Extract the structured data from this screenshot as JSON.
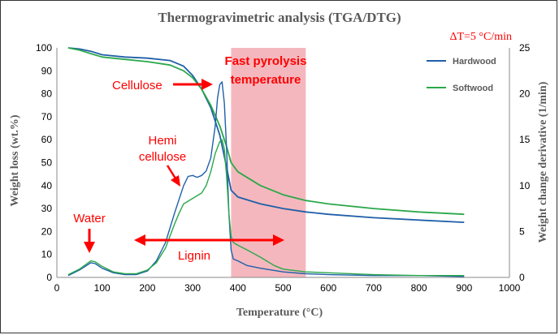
{
  "chart_data": {
    "type": "line",
    "title": "Thermogravimetric analysis (TGA/DTG)",
    "heating_rate": "ΔT=5 °C/min",
    "xlabel": "Temperature (°C)",
    "ylabel_left": "Weight loss (wt.%)",
    "ylabel_right": "Weight change derivative (1/min)",
    "xlim": [
      0,
      1000
    ],
    "ylim_left": [
      0,
      100
    ],
    "ylim_right": [
      0,
      25
    ],
    "x_ticks": [
      "0",
      "100",
      "200",
      "300",
      "400",
      "500",
      "600",
      "700",
      "800",
      "900",
      "1000"
    ],
    "y_left_ticks": [
      "0",
      "10",
      "20",
      "30",
      "40",
      "50",
      "60",
      "70",
      "80",
      "90",
      "100"
    ],
    "y_right_ticks": [
      "0",
      "5",
      "10",
      "15",
      "20",
      "25"
    ],
    "highlight_region": {
      "label_line1": "Fast pyrolysis",
      "label_line2": "temperature",
      "x_start": 385,
      "x_end": 550,
      "color": "#f4b7be"
    },
    "series": [
      {
        "name": "Hardwood",
        "kind": "TGA",
        "axis": "left",
        "color": "#1f5fa8",
        "x": [
          25,
          50,
          75,
          100,
          150,
          200,
          250,
          280,
          300,
          320,
          340,
          360,
          375,
          385,
          400,
          450,
          500,
          550,
          600,
          700,
          800,
          900
        ],
        "y": [
          100,
          99.5,
          98.5,
          97,
          96,
          95.5,
          94.5,
          92,
          88,
          82,
          74,
          62,
          48,
          38,
          35,
          32,
          30,
          28.5,
          27.5,
          26,
          25,
          24
        ]
      },
      {
        "name": "Softwood",
        "kind": "TGA",
        "axis": "left",
        "color": "#2aa84a",
        "x": [
          25,
          50,
          75,
          100,
          150,
          200,
          250,
          280,
          300,
          320,
          340,
          360,
          375,
          385,
          400,
          450,
          500,
          550,
          600,
          700,
          800,
          900
        ],
        "y": [
          100,
          99,
          97.5,
          96,
          95,
          94,
          92.5,
          90,
          87,
          82,
          75,
          66,
          57,
          50,
          46,
          40,
          36,
          33.5,
          32,
          30,
          28.5,
          27.5
        ]
      },
      {
        "name": "Hardwood",
        "kind": "DTG",
        "axis": "right",
        "color": "#1f5fa8",
        "x": [
          25,
          50,
          75,
          85,
          100,
          125,
          150,
          175,
          200,
          220,
          240,
          260,
          280,
          290,
          300,
          310,
          320,
          330,
          340,
          350,
          355,
          360,
          365,
          370,
          375,
          380,
          385,
          390,
          400,
          420,
          450,
          500,
          550,
          600,
          700,
          800,
          900
        ],
        "y": [
          0.2,
          0.8,
          1.6,
          1.5,
          1.0,
          0.5,
          0.3,
          0.3,
          0.7,
          1.8,
          3.8,
          7.0,
          10.0,
          11.0,
          11.1,
          10.9,
          11.1,
          11.6,
          13.0,
          16.5,
          19.5,
          21.0,
          21.3,
          19.0,
          14.0,
          7.0,
          3.0,
          2.0,
          1.8,
          1.3,
          1.0,
          0.6,
          0.4,
          0.3,
          0.2,
          0.2,
          0.1
        ]
      },
      {
        "name": "Softwood",
        "kind": "DTG",
        "axis": "right",
        "color": "#2aa84a",
        "x": [
          25,
          50,
          75,
          85,
          100,
          125,
          150,
          175,
          200,
          220,
          240,
          260,
          270,
          280,
          300,
          320,
          330,
          340,
          350,
          360,
          365,
          370,
          375,
          380,
          385,
          390,
          400,
          420,
          450,
          480,
          500,
          550,
          600,
          700,
          800,
          900
        ],
        "y": [
          0.3,
          0.9,
          1.8,
          1.7,
          1.2,
          0.6,
          0.4,
          0.4,
          0.8,
          1.6,
          3.2,
          5.8,
          7.0,
          8.0,
          8.6,
          9.2,
          10.0,
          11.5,
          13.5,
          14.8,
          15.0,
          14.0,
          11.0,
          7.0,
          4.5,
          3.8,
          3.5,
          3.0,
          2.2,
          1.3,
          0.9,
          0.6,
          0.5,
          0.3,
          0.2,
          0.2
        ]
      }
    ],
    "legend": [
      "Hardwood",
      "Softwood"
    ],
    "annotations": {
      "cellulose": "Cellulose",
      "hemi_line1": "Hemi",
      "hemi_line2": "cellulose",
      "water": "Water",
      "lignin": "Lignin"
    },
    "annotation_color": "#ff0000"
  }
}
